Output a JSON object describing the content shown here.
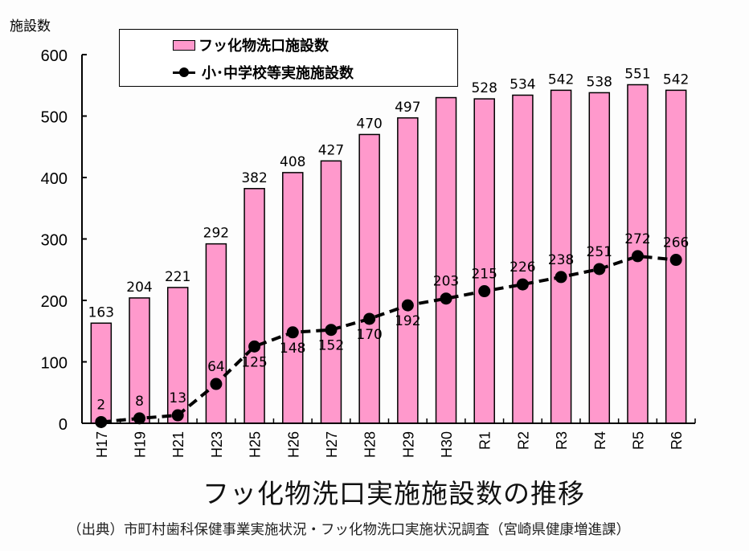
{
  "chart_data": {
    "type": "bar+line",
    "title": "フッ化物洗口実施施設数の推移",
    "source": "（出典）市町村歯科保健事業実施状況・フッ化物洗口実施状況調査（宮崎県健康増進課）",
    "ylabel": "施設数",
    "xlabel": "",
    "ylim": [
      0,
      600
    ],
    "yticks": [
      0,
      100,
      200,
      300,
      400,
      500,
      600
    ],
    "grid": false,
    "legend_position": "top",
    "categories": [
      "H17",
      "H19",
      "H21",
      "H23",
      "H25",
      "H26",
      "H27",
      "H28",
      "H29",
      "H30",
      "R1",
      "R2",
      "R3",
      "R4",
      "R5",
      "R6"
    ],
    "series": [
      {
        "name": "フッ化物洗口施設数",
        "type": "bar",
        "color": "#ff99cc",
        "values": [
          163,
          204,
          221,
          292,
          382,
          408,
          427,
          470,
          497,
          530,
          528,
          534,
          542,
          538,
          551,
          542
        ],
        "labels": [
          "163",
          "204",
          "221",
          "292",
          "382",
          "408",
          "427",
          "470",
          "497",
          "",
          "528",
          "534",
          "542",
          "538",
          "551",
          "542"
        ]
      },
      {
        "name": "小･中学校等実施施設数",
        "type": "line",
        "color": "#000000",
        "style": "dashed",
        "values": [
          2,
          8,
          13,
          64,
          125,
          148,
          152,
          170,
          192,
          203,
          215,
          226,
          238,
          251,
          272,
          266
        ],
        "labels": [
          "2",
          "8",
          "13",
          "64",
          "125",
          "148",
          "152",
          "170",
          "192",
          "203",
          "215",
          "226",
          "238",
          "251",
          "272",
          "266"
        ]
      }
    ]
  }
}
